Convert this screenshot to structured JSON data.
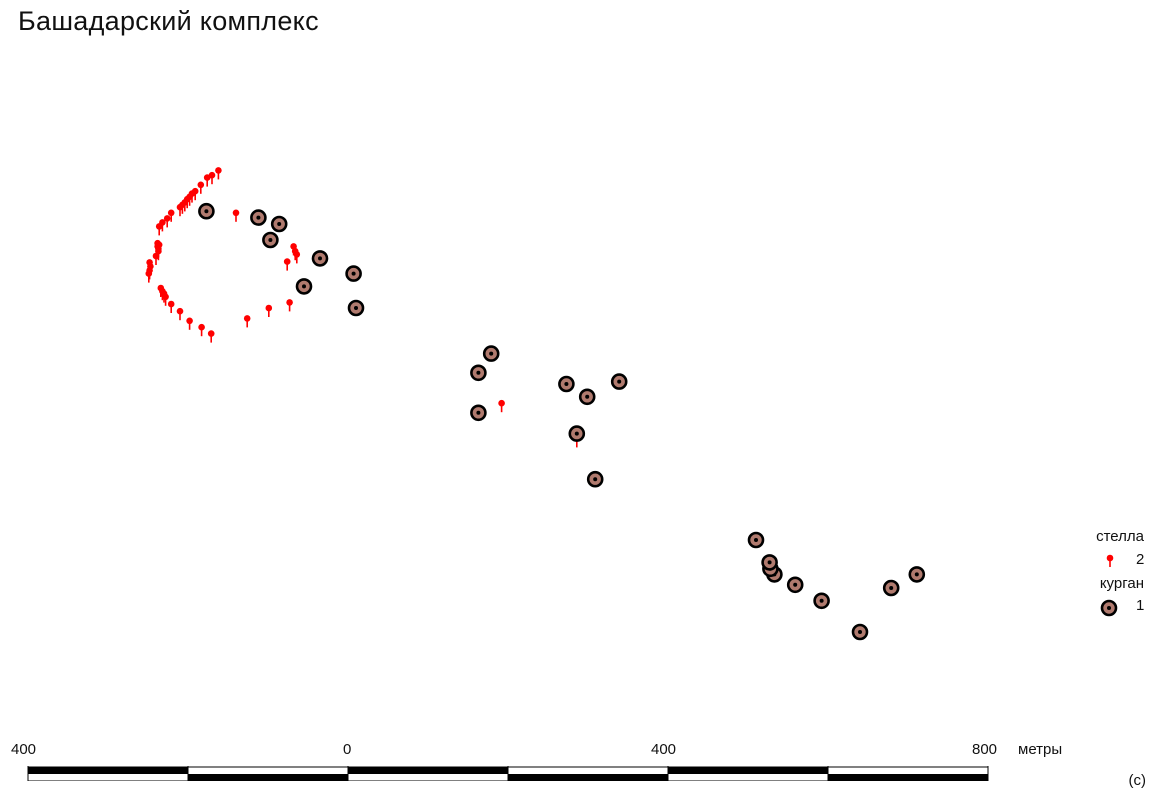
{
  "title": "Башадарский комплекс",
  "legend": {
    "stella": {
      "label": "стелла",
      "count": "2",
      "color": "#ff0000"
    },
    "kurgan": {
      "label": "курган",
      "count": "1",
      "fill": "#b07a6e",
      "stroke": "#000000"
    }
  },
  "scale": {
    "unit": "метры",
    "labels": [
      "400",
      "0",
      "400",
      "800"
    ],
    "ticks_m": [
      -400,
      -200,
      0,
      200,
      400,
      600,
      800
    ]
  },
  "corner_mark": "(c)",
  "features": {
    "kurgans": [
      [
        640,
        -790
      ],
      [
        679,
        -735
      ],
      [
        592,
        -751
      ],
      [
        559,
        -731
      ],
      [
        533,
        -718
      ],
      [
        528,
        -711
      ],
      [
        527,
        -703
      ],
      [
        510,
        -675
      ],
      [
        711,
        -718
      ],
      [
        309,
        -599
      ],
      [
        286,
        -542
      ],
      [
        163,
        -516
      ],
      [
        299,
        -496
      ],
      [
        273,
        -480
      ],
      [
        339,
        -477
      ],
      [
        163,
        -466
      ],
      [
        179,
        -442
      ],
      [
        10,
        -385
      ],
      [
        -55,
        -358
      ],
      [
        7,
        -342
      ],
      [
        -35,
        -323
      ],
      [
        -97,
        -300
      ],
      [
        -86,
        -280
      ],
      [
        -112,
        -272
      ],
      [
        -177,
        -264
      ]
    ],
    "stellae": [
      [
        286,
        -548
      ],
      [
        192,
        -504
      ],
      [
        -171,
        -417
      ],
      [
        -183,
        -409
      ],
      [
        -198,
        -401
      ],
      [
        -210,
        -389
      ],
      [
        -221,
        -380
      ],
      [
        -228,
        -371
      ],
      [
        -230,
        -367
      ],
      [
        -232,
        -364
      ],
      [
        -234,
        -360
      ],
      [
        -249,
        -342
      ],
      [
        -248,
        -338
      ],
      [
        -247,
        -333
      ],
      [
        -248,
        -328
      ],
      [
        -240,
        -320
      ],
      [
        -237,
        -314
      ],
      [
        -237,
        -311
      ],
      [
        -238,
        -308
      ],
      [
        -236,
        -306
      ],
      [
        -238,
        -304
      ],
      [
        -236,
        -283
      ],
      [
        -232,
        -278
      ],
      [
        -226,
        -273
      ],
      [
        -221,
        -266
      ],
      [
        -210,
        -259
      ],
      [
        -207,
        -256
      ],
      [
        -204,
        -253
      ],
      [
        -201,
        -249
      ],
      [
        -198,
        -246
      ],
      [
        -195,
        -242
      ],
      [
        -191,
        -239
      ],
      [
        -184,
        -231
      ],
      [
        -176,
        -222
      ],
      [
        -170,
        -219
      ],
      [
        -162,
        -213
      ],
      [
        -126,
        -398
      ],
      [
        -99,
        -385
      ],
      [
        -73,
        -378
      ],
      [
        -76,
        -327
      ],
      [
        -64,
        -318
      ],
      [
        -66,
        -314
      ],
      [
        -68,
        -308
      ],
      [
        -140,
        -266
      ]
    ]
  }
}
